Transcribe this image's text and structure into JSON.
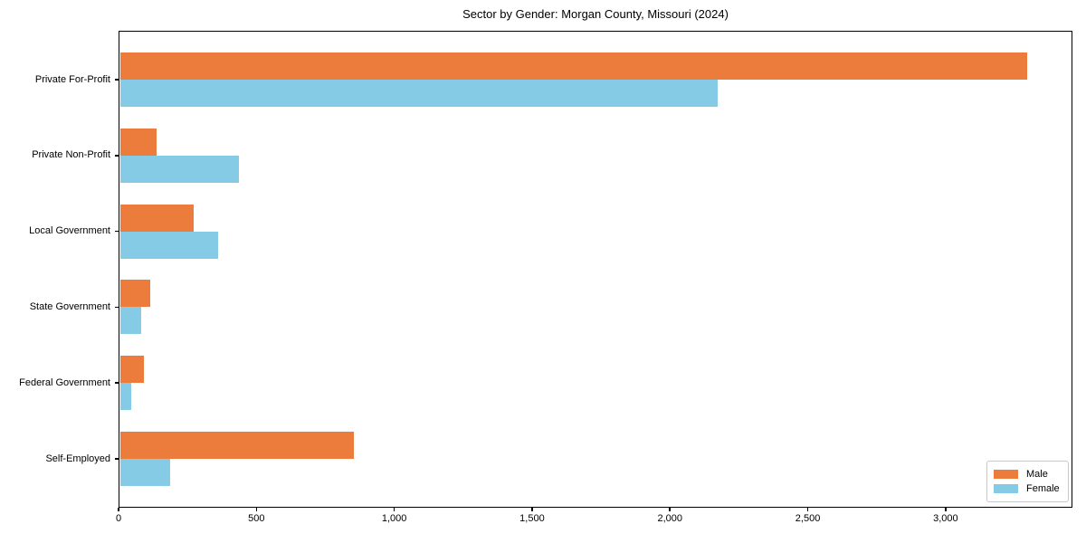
{
  "figure": {
    "background": "#ffffff"
  },
  "chart_data": {
    "type": "bar",
    "orientation": "horizontal",
    "title": "Sector by Gender: Morgan County, Missouri (2024)",
    "xlabel": "",
    "ylabel": "",
    "categories": [
      "Private For-Profit",
      "Private Non-Profit",
      "Local Government",
      "State Government",
      "Federal Government",
      "Self-Employed"
    ],
    "series": [
      {
        "name": "Male",
        "color": "#EC7C3C",
        "values": [
          3295,
          138,
          272,
          116,
          93,
          853
        ]
      },
      {
        "name": "Female",
        "color": "#85CBE5",
        "values": [
          2172,
          436,
          361,
          81,
          45,
          187
        ]
      }
    ],
    "xlim": [
      0,
      3460
    ],
    "xticks": {
      "values": [
        0,
        500,
        1000,
        1500,
        2000,
        2500,
        3000
      ],
      "labels": [
        "0",
        "500",
        "1,000",
        "1,500",
        "2,000",
        "2,500",
        "3,000"
      ]
    },
    "grid": false,
    "legend": {
      "position": "lower right",
      "entries": [
        "Male",
        "Female"
      ]
    },
    "spine_color": "#000000",
    "text_color": "#000000"
  }
}
